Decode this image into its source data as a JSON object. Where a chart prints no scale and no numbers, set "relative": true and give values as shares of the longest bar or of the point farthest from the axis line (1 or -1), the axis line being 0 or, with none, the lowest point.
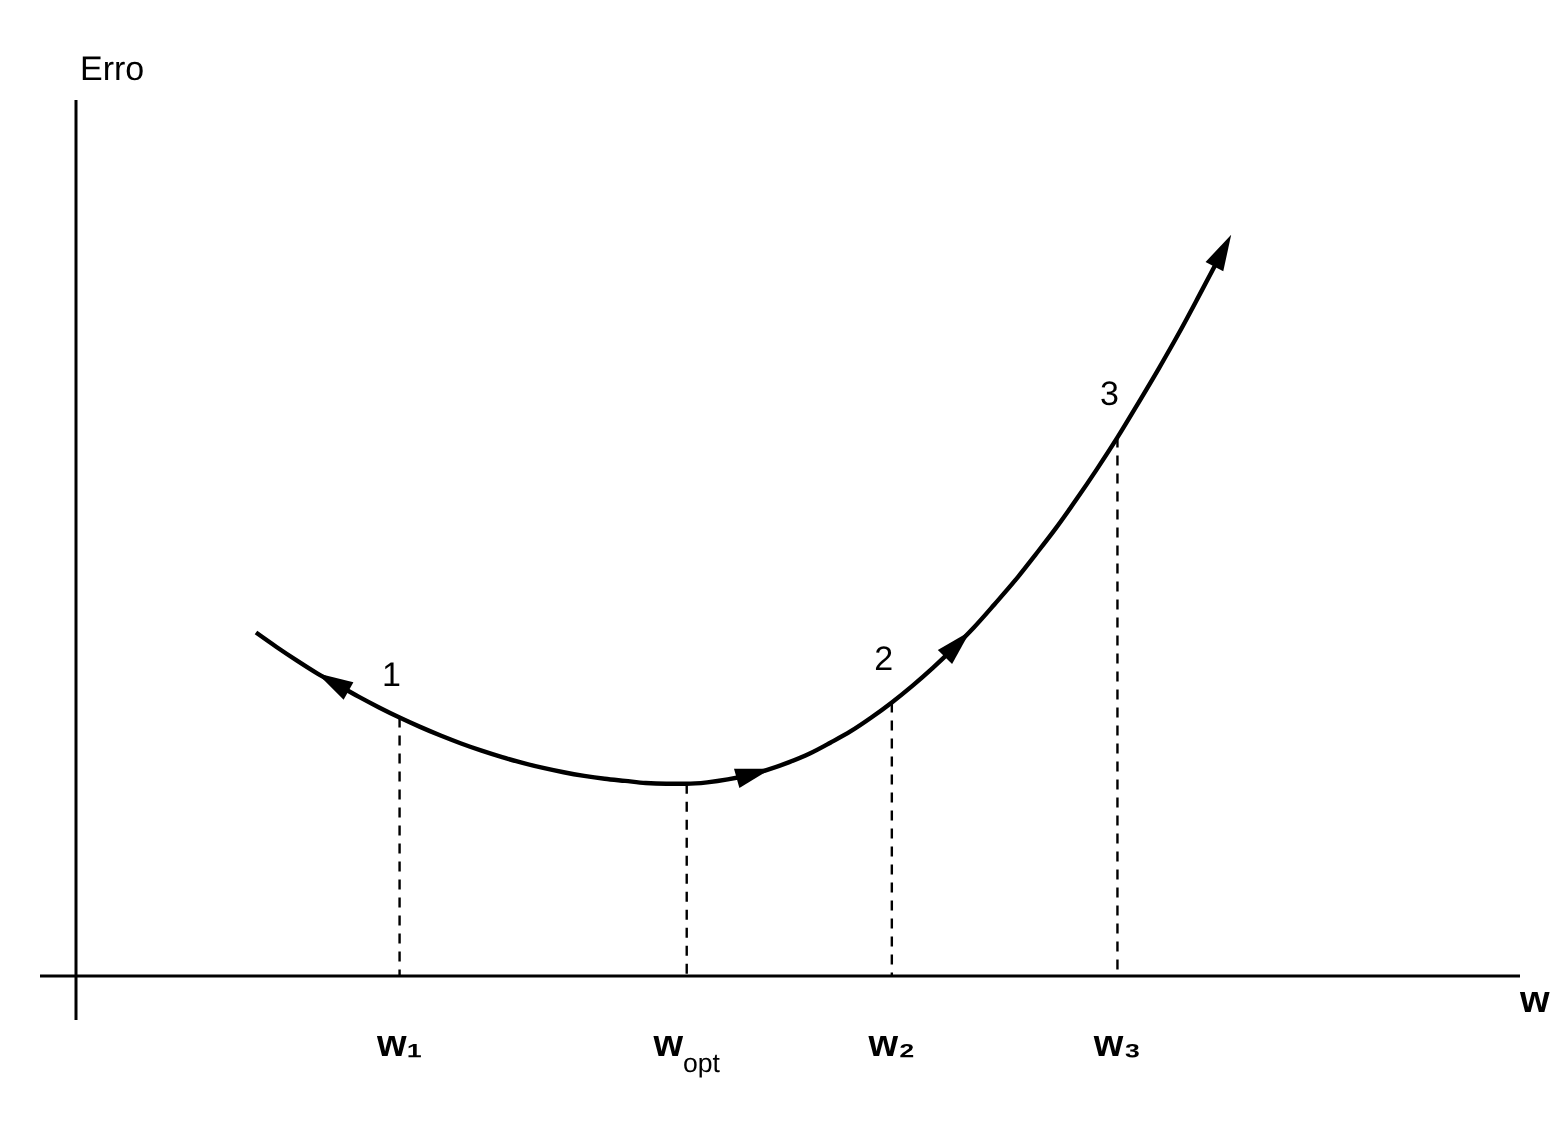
{
  "chart_data": {
    "type": "line",
    "relative": true,
    "marker": "none",
    "line_style": "solid",
    "grid": "x",
    "categories": [
      null,
      null,
      null,
      null,
      null,
      null,
      null,
      "w₁",
      null,
      null,
      null,
      null,
      null,
      null,
      null,
      null,
      null,
      null,
      null,
      null,
      null,
      "w$_{opt}$",
      null,
      null,
      null,
      null,
      null,
      null,
      null,
      null,
      null,
      "w₂",
      null,
      null,
      null,
      null,
      null,
      null,
      null,
      null,
      null,
      null,
      "w₃",
      null,
      null,
      null,
      null,
      null
    ],
    "series": [
      {
        "color": "#000000",
        "values": [
          0.477,
          0.457,
          0.438,
          0.42,
          0.404,
          0.388,
          0.373,
          0.359,
          0.346,
          0.334,
          0.323,
          0.313,
          0.304,
          0.296,
          0.289,
          0.283,
          0.278,
          0.274,
          0.271,
          0.268,
          0.267,
          0.267,
          0.269,
          0.273,
          0.279,
          0.287,
          0.297,
          0.309,
          0.324,
          0.34,
          0.359,
          0.38,
          0.403,
          0.428,
          0.455,
          0.484,
          0.516,
          0.549,
          0.585,
          0.622,
          0.662,
          0.704,
          0.748,
          0.795,
          0.843,
          0.893,
          0.946,
          1
        ]
      }
    ],
    "annotations": [
      "Erro",
      "w",
      {
        "text": "1",
        "x": "w₁",
        "y": 0.359
      },
      {
        "text": "2",
        "x": "w₂",
        "y": 0.38
      },
      {
        "text": "3",
        "x": "w₃",
        "y": 0.748
      }
    ]
  }
}
